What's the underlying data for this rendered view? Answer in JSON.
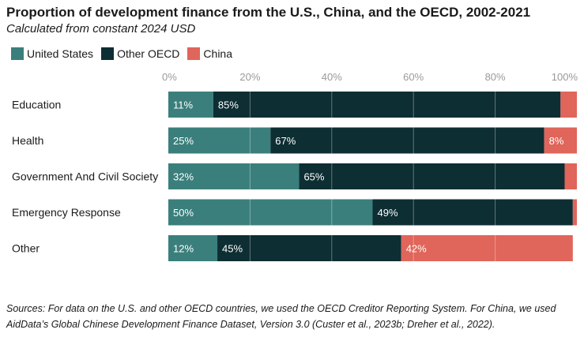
{
  "header": {
    "title": "Proportion of development finance from the U.S., China, and the OECD, 2002-2021",
    "subtitle": "Calculated from constant 2024 USD"
  },
  "footer": {
    "source": "Sources: For data on the U.S. and other OECD countries, we used the OECD Creditor Reporting System. For China, we used AidData’s Global Chinese Development Finance Dataset, Version 3.0 (Custer et al., 2023b; Dreher et al., 2022)."
  },
  "chart_data": {
    "type": "bar",
    "orientation": "horizontal",
    "stacked": true,
    "title": "Proportion of development finance from the U.S., China, and the OECD, 2002-2021",
    "subtitle": "Calculated from constant 2024 USD",
    "categories": [
      "Education",
      "Health",
      "Government And Civil Society",
      "Emergency Response",
      "Other"
    ],
    "series": [
      {
        "name": "United States",
        "color": "#3a7f7c",
        "values": [
          11,
          25,
          32,
          50,
          12
        ],
        "labels": [
          "11%",
          "25%",
          "32%",
          "50%",
          "12%"
        ]
      },
      {
        "name": "Other OECD",
        "color": "#0d2e33",
        "values": [
          85,
          67,
          65,
          49,
          45
        ],
        "labels": [
          "85%",
          "67%",
          "65%",
          "49%",
          "45%"
        ]
      },
      {
        "name": "China",
        "color": "#e0655a",
        "values": [
          4,
          8,
          3,
          1,
          42
        ],
        "labels": [
          "",
          "8%",
          "",
          "",
          "42%"
        ]
      }
    ],
    "xlim": [
      0,
      100
    ],
    "xticks": [
      "0%",
      "20%",
      "40%",
      "60%",
      "80%",
      "100%"
    ],
    "legend_position": "top-left",
    "grid": true
  }
}
